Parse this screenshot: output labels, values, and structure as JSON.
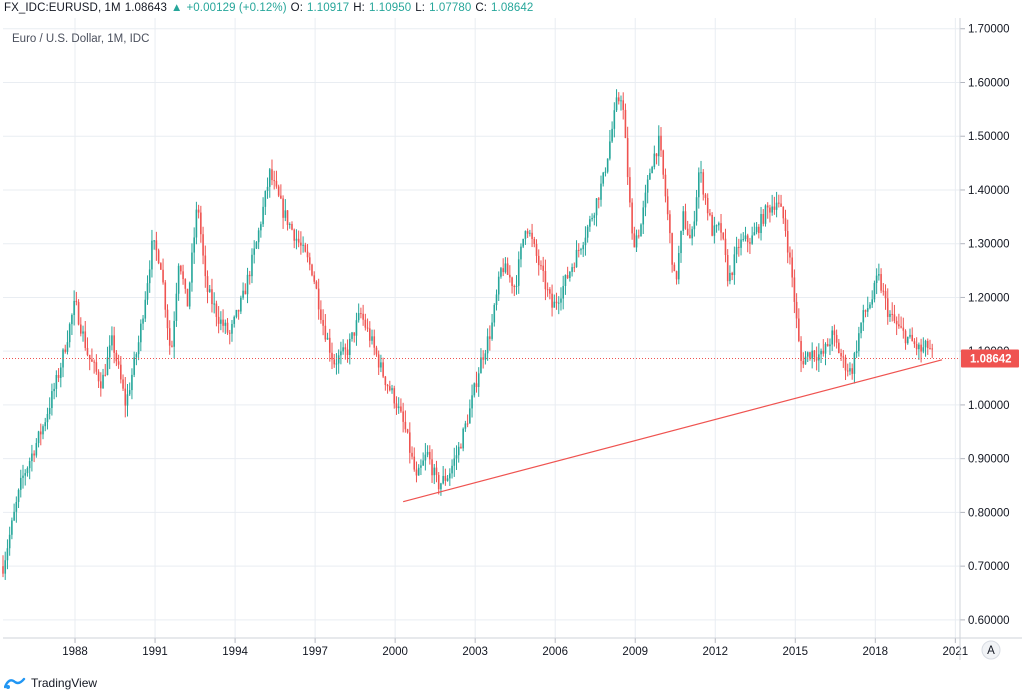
{
  "header": {
    "symbol": "FX_IDC:EURUSD, 1M",
    "last": "1.08643",
    "change": "+0.00129 (+0.12%)",
    "open_label": "O:",
    "open": "1.10917",
    "high_label": "H:",
    "high": "1.10950",
    "low_label": "L:",
    "low": "1.07780",
    "close_label": "C:",
    "close": "1.08642"
  },
  "legend": {
    "title": "Euro / U.S. Dollar, 1M, IDC"
  },
  "axis_mode_button": "A",
  "branding": {
    "name": "TradingView"
  },
  "colors": {
    "up": "#26a69a",
    "down": "#ef5350",
    "grid": "#e9edf2",
    "price_line": "#ef5350",
    "trendline": "#ef5350"
  },
  "chart_data": {
    "type": "candlestick",
    "title": "Euro / U.S. Dollar, 1M, IDC",
    "symbol": "EURUSD",
    "interval": "1M",
    "x_range": [
      1985.3,
      2021.1
    ],
    "ylim": [
      0.57,
      1.72
    ],
    "y_ticks": [
      0.6,
      0.7,
      0.8,
      0.9,
      1.0,
      1.1,
      1.2,
      1.3,
      1.4,
      1.5,
      1.6,
      1.7
    ],
    "y_tick_labels": [
      "0.60000",
      "0.70000",
      "0.80000",
      "0.90000",
      "1.00000",
      "1.10000",
      "1.20000",
      "1.30000",
      "1.40000",
      "1.50000",
      "1.60000",
      "1.70000"
    ],
    "x_ticks": [
      1988,
      1991,
      1994,
      1997,
      2000,
      2003,
      2006,
      2009,
      2012,
      2015,
      2018,
      2021
    ],
    "x_tick_labels": [
      "1988",
      "1991",
      "1994",
      "1997",
      "2000",
      "2003",
      "2006",
      "2009",
      "2012",
      "2015",
      "2018",
      "2021"
    ],
    "last_price": 1.08642,
    "last_price_label": "1.08642",
    "trendline": {
      "start": [
        2000.3,
        0.82
      ],
      "end": [
        2020.5,
        1.084
      ]
    },
    "close_path": [
      [
        1985.3,
        0.7
      ],
      [
        1986.0,
        0.86
      ],
      [
        1986.8,
        0.96
      ],
      [
        1987.4,
        1.06
      ],
      [
        1988.0,
        1.19
      ],
      [
        1988.5,
        1.09
      ],
      [
        1989.0,
        1.04
      ],
      [
        1989.4,
        1.12
      ],
      [
        1989.9,
        1.0
      ],
      [
        1990.4,
        1.12
      ],
      [
        1990.9,
        1.3
      ],
      [
        1991.2,
        1.27
      ],
      [
        1991.6,
        1.09
      ],
      [
        1991.9,
        1.28
      ],
      [
        1992.2,
        1.18
      ],
      [
        1992.6,
        1.38
      ],
      [
        1992.9,
        1.22
      ],
      [
        1993.4,
        1.16
      ],
      [
        1993.8,
        1.13
      ],
      [
        1994.3,
        1.2
      ],
      [
        1994.8,
        1.3
      ],
      [
        1995.3,
        1.43
      ],
      [
        1995.8,
        1.36
      ],
      [
        1996.4,
        1.3
      ],
      [
        1996.9,
        1.25
      ],
      [
        1997.3,
        1.15
      ],
      [
        1997.7,
        1.08
      ],
      [
        1998.2,
        1.1
      ],
      [
        1998.7,
        1.17
      ],
      [
        1999.1,
        1.12
      ],
      [
        1999.6,
        1.05
      ],
      [
        2000.0,
        1.01
      ],
      [
        2000.4,
        0.95
      ],
      [
        2000.8,
        0.86
      ],
      [
        2001.2,
        0.91
      ],
      [
        2001.6,
        0.85
      ],
      [
        2002.0,
        0.87
      ],
      [
        2002.4,
        0.92
      ],
      [
        2002.8,
        0.99
      ],
      [
        2003.2,
        1.08
      ],
      [
        2003.6,
        1.14
      ],
      [
        2004.0,
        1.26
      ],
      [
        2004.5,
        1.22
      ],
      [
        2004.9,
        1.34
      ],
      [
        2005.4,
        1.26
      ],
      [
        2005.9,
        1.18
      ],
      [
        2006.3,
        1.22
      ],
      [
        2006.8,
        1.28
      ],
      [
        2007.3,
        1.34
      ],
      [
        2007.8,
        1.42
      ],
      [
        2008.3,
        1.56
      ],
      [
        2008.5,
        1.58
      ],
      [
        2008.9,
        1.3
      ],
      [
        2009.2,
        1.33
      ],
      [
        2009.6,
        1.45
      ],
      [
        2009.9,
        1.49
      ],
      [
        2010.2,
        1.36
      ],
      [
        2010.5,
        1.22
      ],
      [
        2010.8,
        1.35
      ],
      [
        2011.1,
        1.3
      ],
      [
        2011.4,
        1.44
      ],
      [
        2011.9,
        1.32
      ],
      [
        2012.2,
        1.33
      ],
      [
        2012.5,
        1.23
      ],
      [
        2012.9,
        1.3
      ],
      [
        2013.4,
        1.31
      ],
      [
        2013.9,
        1.36
      ],
      [
        2014.3,
        1.38
      ],
      [
        2014.6,
        1.34
      ],
      [
        2014.9,
        1.23
      ],
      [
        2015.2,
        1.08
      ],
      [
        2015.6,
        1.1
      ],
      [
        2016.0,
        1.09
      ],
      [
        2016.4,
        1.13
      ],
      [
        2016.8,
        1.08
      ],
      [
        2017.1,
        1.06
      ],
      [
        2017.5,
        1.16
      ],
      [
        2017.9,
        1.2
      ],
      [
        2018.1,
        1.24
      ],
      [
        2018.5,
        1.17
      ],
      [
        2018.9,
        1.14
      ],
      [
        2019.3,
        1.12
      ],
      [
        2019.7,
        1.1
      ],
      [
        2020.0,
        1.11
      ],
      [
        2020.2,
        1.086
      ]
    ]
  }
}
